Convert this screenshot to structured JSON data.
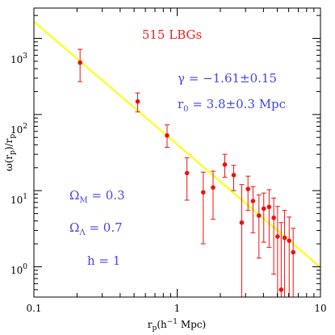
{
  "chart_data": {
    "type": "scatter",
    "title": "515 LBGs",
    "xlabel": "r_p(h^-1 Mpc)",
    "ylabel": "ω(r_p)/r_p",
    "x_scale": "log",
    "y_scale": "log",
    "xlim": [
      0.1,
      10
    ],
    "ylim": [
      0.4,
      2500
    ],
    "x_ticks": [
      {
        "value": 0.1,
        "label": "0.1"
      },
      {
        "value": 1,
        "label": "1"
      },
      {
        "value": 10,
        "label": "10"
      }
    ],
    "y_ticks": [
      {
        "value": 1,
        "base": "10",
        "exp": "0"
      },
      {
        "value": 10,
        "base": "10",
        "exp": "1"
      },
      {
        "value": 100,
        "base": "10",
        "exp": "2"
      },
      {
        "value": 1000,
        "base": "10",
        "exp": "3"
      }
    ],
    "grid": false,
    "colors": {
      "points": "#ee1111",
      "fit_line": "#ffff00",
      "annotation": "#4444ee",
      "title": "#ee2222"
    },
    "series": [
      {
        "values": [
          {
            "x": 0.21,
            "y": 480,
            "ylo": 270,
            "yhi": 720
          },
          {
            "x": 0.53,
            "y": 148,
            "ylo": 108,
            "yhi": 192
          },
          {
            "x": 0.85,
            "y": 53,
            "ylo": 37,
            "yhi": 73
          },
          {
            "x": 1.17,
            "y": 17,
            "ylo": 7.5,
            "yhi": 27
          },
          {
            "x": 1.52,
            "y": 9.5,
            "ylo": 2.0,
            "yhi": 17.5
          },
          {
            "x": 1.78,
            "y": 11,
            "ylo": 4.2,
            "yhi": 18
          },
          {
            "x": 2.15,
            "y": 22,
            "ylo": 15,
            "yhi": 30
          },
          {
            "x": 2.48,
            "y": 16,
            "ylo": 10,
            "yhi": 21.5
          },
          {
            "x": 2.82,
            "y": 3.8,
            "ylo": 0.4,
            "yhi": 12
          },
          {
            "x": 3.12,
            "y": 10.5,
            "ylo": 5.5,
            "yhi": 15.5
          },
          {
            "x": 3.38,
            "y": 7.3,
            "ylo": 2.8,
            "yhi": 11.3
          },
          {
            "x": 3.72,
            "y": 4.7,
            "ylo": 1.3,
            "yhi": 8.8
          },
          {
            "x": 4.02,
            "y": 5.8,
            "ylo": 2.1,
            "yhi": 9.3
          },
          {
            "x": 4.38,
            "y": 6.1,
            "ylo": 1.8,
            "yhi": 10.3
          },
          {
            "x": 4.72,
            "y": 4.4,
            "ylo": 0.8,
            "yhi": 8.0
          },
          {
            "x": 5.02,
            "y": 2.5,
            "ylo": 0.4,
            "yhi": 6.2
          },
          {
            "x": 5.32,
            "y": 0.5,
            "ylo": 0.4,
            "yhi": 3.8
          },
          {
            "x": 5.62,
            "y": 2.4,
            "ylo": 0.4,
            "yhi": 5.5
          },
          {
            "x": 6.05,
            "y": 2.2,
            "ylo": 0.4,
            "yhi": 4.5
          },
          {
            "x": 6.45,
            "y": 1.55,
            "ylo": 0.4,
            "yhi": 3.2
          }
        ]
      }
    ],
    "fit_line": {
      "x": [
        0.1,
        10
      ],
      "y": [
        1660,
        0.98
      ]
    },
    "annotations": [
      {
        "id": "gamma",
        "text": "γ = −1.61±0.15",
        "color": "blue"
      },
      {
        "id": "r0",
        "text": "r₀ = 3.8±0.3 Mpc",
        "color": "blue"
      },
      {
        "id": "omega_m",
        "text": "Ω_M = 0.3",
        "color": "blue"
      },
      {
        "id": "omega_l",
        "text": "Ω_Λ = 0.7",
        "color": "blue"
      },
      {
        "id": "h",
        "text": "h = 1",
        "color": "blue"
      }
    ]
  }
}
